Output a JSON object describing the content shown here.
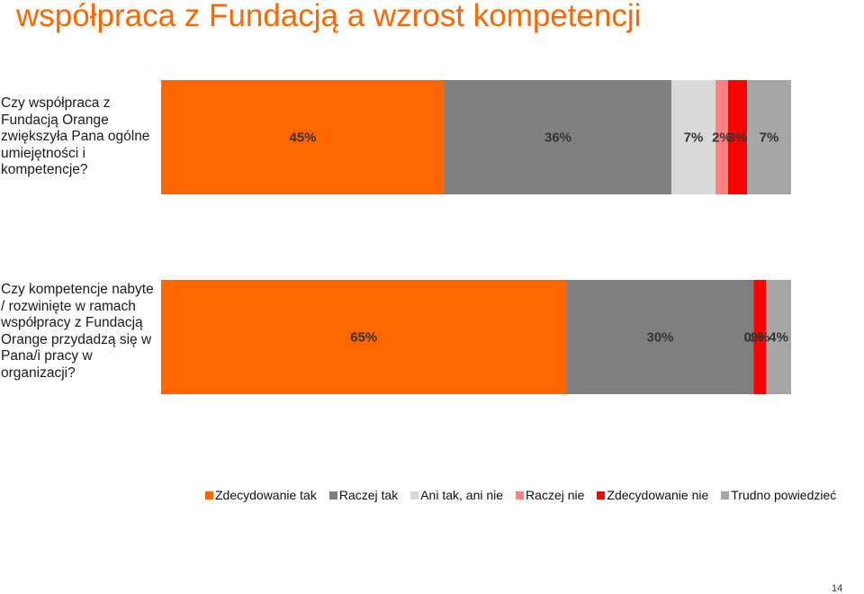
{
  "title": "współpraca z Fundacją a wzrost kompetencji",
  "page_number": "14",
  "colors": {
    "accent": "#ff6600",
    "zdecydowanie_tak": "#ff6600",
    "raczej_tak": "#808080",
    "ani_tak_ani_nie": "#d9d9d9",
    "raczej_nie": "#ff8080",
    "zdecydowanie_nie": "#ff0000",
    "trudno_powiedziec": "#a6a6a6"
  },
  "chart_data": {
    "type": "bar",
    "orientation": "horizontal",
    "stacked": "100%",
    "categories": [
      "Czy współpraca z Fundacją Orange zwiększyła Pana ogólne umiejętności i kompetencje?",
      "Czy kompetencje nabyte / rozwinięte w ramach współpracy z Fundacją Orange przydadzą się w Pana/i pracy w organizacji?"
    ],
    "series": [
      {
        "name": "Zdecydowanie tak",
        "color": "#ff6600",
        "values": [
          45,
          65
        ],
        "labels": [
          "45%",
          "65%"
        ]
      },
      {
        "name": "Raczej tak",
        "color": "#808080",
        "values": [
          36,
          30
        ],
        "labels": [
          "36%",
          "30%"
        ]
      },
      {
        "name": "Ani tak, ani nie",
        "color": "#d9d9d9",
        "values": [
          7,
          0
        ],
        "labels": [
          "7%",
          "0%"
        ]
      },
      {
        "name": "Raczej nie",
        "color": "#ff8080",
        "values": [
          2,
          0
        ],
        "labels": [
          "2%",
          "0%"
        ]
      },
      {
        "name": "Zdecydowanie nie",
        "color": "#ff0000",
        "values": [
          3,
          2
        ],
        "labels": [
          "3%",
          "2%"
        ]
      },
      {
        "name": "Trudno powiedzieć",
        "color": "#a6a6a6",
        "values": [
          7,
          4
        ],
        "labels": [
          "7%",
          "4%"
        ]
      }
    ],
    "legend_position": "bottom",
    "grid": false
  }
}
